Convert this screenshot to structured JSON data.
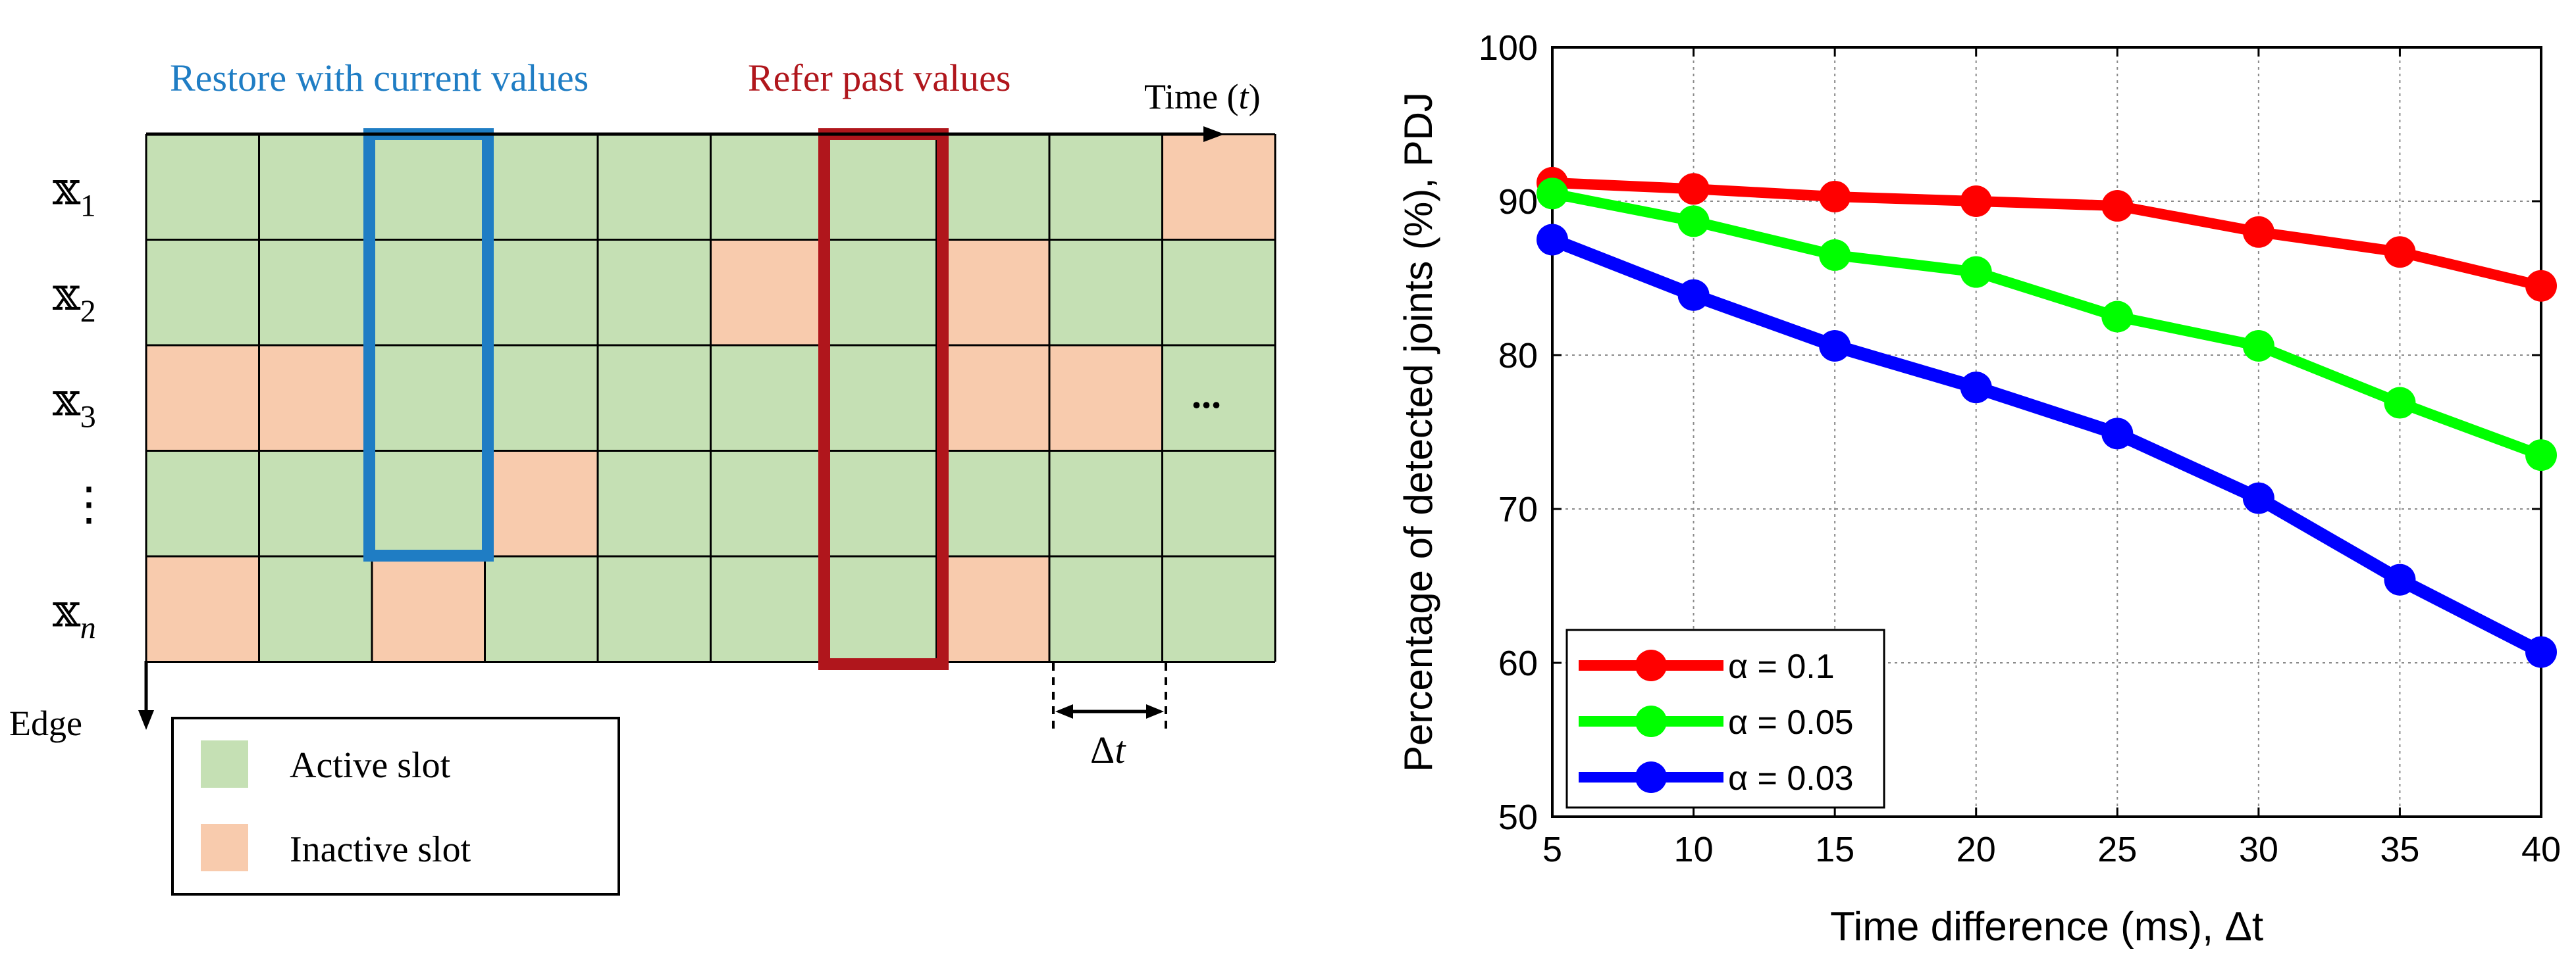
{
  "colors": {
    "active": "#c5e0b4",
    "inactive": "#f8cbad",
    "blue_box": "#1f7dc4",
    "red_box": "#b0161c",
    "blue_text": "#1f7dc4",
    "red_text": "#b0161c"
  },
  "diagram": {
    "restore_label": "Restore with current values",
    "refer_label": "Refer past values",
    "time_axis_label": "Time (",
    "time_axis_var": "t",
    "time_axis_close": ")",
    "edge_axis_label": "Edge",
    "ellipsis": "...",
    "delta_symbol": "Δ",
    "delta_var": "t",
    "rows": [
      {
        "symbol": "𝕩",
        "sub": "1",
        "cells": [
          0,
          0,
          0,
          0,
          0,
          0,
          0,
          0,
          0,
          1
        ]
      },
      {
        "symbol": "𝕩",
        "sub": "2",
        "cells": [
          0,
          0,
          0,
          0,
          0,
          1,
          0,
          1,
          0,
          0
        ]
      },
      {
        "symbol": "𝕩",
        "sub": "3",
        "cells": [
          1,
          1,
          0,
          0,
          0,
          0,
          0,
          1,
          1,
          0
        ]
      },
      {
        "symbol": "⋮",
        "sub": "",
        "cells": [
          0,
          0,
          0,
          1,
          0,
          0,
          0,
          0,
          0,
          0
        ]
      },
      {
        "symbol": "𝕩",
        "sub": "n",
        "cells": [
          1,
          0,
          1,
          0,
          0,
          0,
          0,
          1,
          0,
          0
        ]
      }
    ],
    "legend": {
      "active_label": "Active slot",
      "inactive_label": "Inactive slot"
    }
  },
  "chart_data": {
    "type": "line",
    "title": "",
    "xlabel": "Time difference (ms),  Δt",
    "ylabel": "Percentage of detected joints (%),  PDJ",
    "x": [
      5,
      10,
      15,
      20,
      25,
      30,
      35,
      40
    ],
    "xticks": [
      "5",
      "10",
      "15",
      "20",
      "25",
      "30",
      "35",
      "40"
    ],
    "yticks": [
      "50",
      "60",
      "70",
      "80",
      "90",
      "100"
    ],
    "xlim": [
      5,
      40
    ],
    "ylim": [
      50,
      100
    ],
    "grid": true,
    "legend_position": "bottom-left",
    "series": [
      {
        "name": "α = 0.1",
        "color": "#ff0000",
        "values": [
          91.2,
          90.8,
          90.3,
          90.0,
          89.7,
          88.0,
          86.7,
          84.5
        ]
      },
      {
        "name": "α = 0.05",
        "color": "#00ff00",
        "values": [
          90.5,
          88.7,
          86.5,
          85.4,
          82.5,
          80.6,
          76.9,
          73.5
        ]
      },
      {
        "name": "α = 0.03",
        "color": "#0000ff",
        "values": [
          87.5,
          83.9,
          80.6,
          77.9,
          74.9,
          70.7,
          65.4,
          60.7
        ]
      }
    ]
  }
}
